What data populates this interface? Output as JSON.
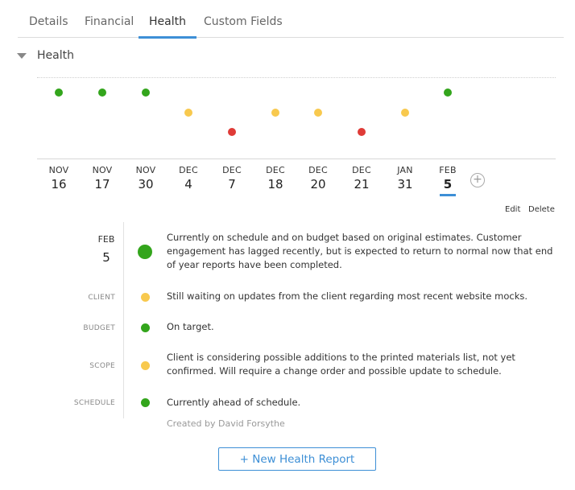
{
  "tabs": [
    {
      "label": "Details"
    },
    {
      "label": "Financial"
    },
    {
      "label": "Health"
    },
    {
      "label": "Custom Fields"
    }
  ],
  "active_tab": "Health",
  "section": {
    "title": "Health"
  },
  "status_colors": {
    "green": "#33a51c",
    "yellow": "#f8c94e",
    "red": "#df3b37",
    "accent": "#3d8fd6"
  },
  "timeline": [
    {
      "mon": "NOV",
      "day": "16",
      "status": "green"
    },
    {
      "mon": "NOV",
      "day": "17",
      "status": "green"
    },
    {
      "mon": "NOV",
      "day": "30",
      "status": "green"
    },
    {
      "mon": "DEC",
      "day": "4",
      "status": "yellow"
    },
    {
      "mon": "DEC",
      "day": "7",
      "status": "red"
    },
    {
      "mon": "DEC",
      "day": "18",
      "status": "yellow"
    },
    {
      "mon": "DEC",
      "day": "20",
      "status": "yellow"
    },
    {
      "mon": "DEC",
      "day": "21",
      "status": "red"
    },
    {
      "mon": "JAN",
      "day": "31",
      "status": "yellow"
    },
    {
      "mon": "FEB",
      "day": "5",
      "status": "green",
      "selected": true
    }
  ],
  "actions": {
    "edit": "Edit",
    "delete": "Delete"
  },
  "report": {
    "mon": "FEB",
    "day": "5",
    "overall": {
      "status": "green",
      "text": "Currently on schedule and on budget based on original estimates. Customer engagement has lagged recently, but is expected to return to normal now that end of year reports have been completed."
    },
    "items": [
      {
        "label": "CLIENT",
        "status": "yellow",
        "text": "Still waiting on updates from the client regarding most recent website mocks."
      },
      {
        "label": "BUDGET",
        "status": "green",
        "text": "On target."
      },
      {
        "label": "SCOPE",
        "status": "yellow",
        "text": "Client is considering possible additions to the printed materials list, not yet confirmed. Will require a change order and possible update to schedule."
      },
      {
        "label": "SCHEDULE",
        "status": "green",
        "text": "Currently ahead of schedule."
      }
    ],
    "created_by": "Created by David Forsythe"
  },
  "new_report_button": "+ New Health Report"
}
